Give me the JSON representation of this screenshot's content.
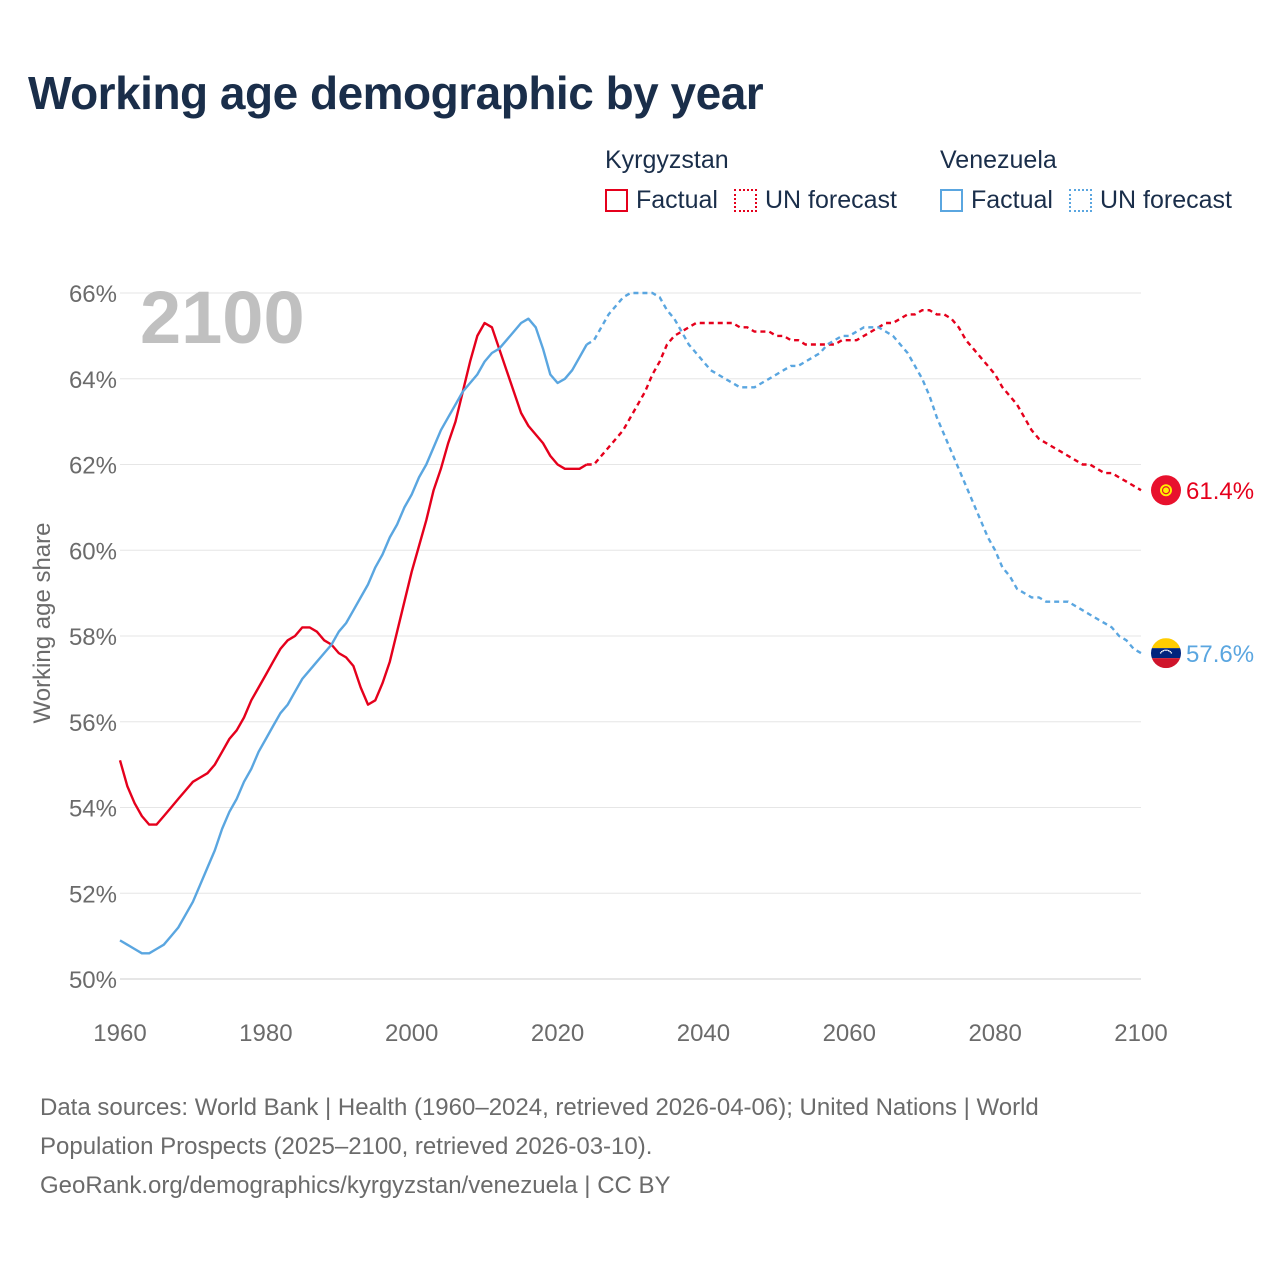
{
  "title": "Working age demographic by year",
  "legend": {
    "groups": [
      {
        "name": "Kyrgyzstan",
        "color": "#e5001c",
        "factual_label": "Factual",
        "forecast_label": "UN forecast"
      },
      {
        "name": "Venezuela",
        "color": "#5aa6e0",
        "factual_label": "Factual",
        "forecast_label": "UN forecast"
      }
    ]
  },
  "year_label": "2100",
  "chart_data": {
    "type": "line",
    "xlabel": "",
    "ylabel": "Working age share",
    "xlim": [
      1960,
      2100
    ],
    "ylim": [
      50,
      66
    ],
    "xticks": [
      1960,
      1980,
      2000,
      2020,
      2040,
      2060,
      2080,
      2100
    ],
    "yticks": [
      50,
      52,
      54,
      56,
      58,
      60,
      62,
      64,
      66
    ],
    "ytick_suffix": "%",
    "factual_end_year": 2024,
    "series": [
      {
        "name": "Kyrgyzstan",
        "color": "#e5001c",
        "end_label": "61.4%",
        "flag_icon": "kyrgyzstan-flag-icon",
        "points": [
          [
            1960,
            55.1
          ],
          [
            1961,
            54.5
          ],
          [
            1962,
            54.1
          ],
          [
            1963,
            53.8
          ],
          [
            1964,
            53.6
          ],
          [
            1965,
            53.6
          ],
          [
            1966,
            53.8
          ],
          [
            1967,
            54.0
          ],
          [
            1968,
            54.2
          ],
          [
            1969,
            54.4
          ],
          [
            1970,
            54.6
          ],
          [
            1971,
            54.7
          ],
          [
            1972,
            54.8
          ],
          [
            1973,
            55.0
          ],
          [
            1974,
            55.3
          ],
          [
            1975,
            55.6
          ],
          [
            1976,
            55.8
          ],
          [
            1977,
            56.1
          ],
          [
            1978,
            56.5
          ],
          [
            1979,
            56.8
          ],
          [
            1980,
            57.1
          ],
          [
            1981,
            57.4
          ],
          [
            1982,
            57.7
          ],
          [
            1983,
            57.9
          ],
          [
            1984,
            58.0
          ],
          [
            1985,
            58.2
          ],
          [
            1986,
            58.2
          ],
          [
            1987,
            58.1
          ],
          [
            1988,
            57.9
          ],
          [
            1989,
            57.8
          ],
          [
            1990,
            57.6
          ],
          [
            1991,
            57.5
          ],
          [
            1992,
            57.3
          ],
          [
            1993,
            56.8
          ],
          [
            1994,
            56.4
          ],
          [
            1995,
            56.5
          ],
          [
            1996,
            56.9
          ],
          [
            1997,
            57.4
          ],
          [
            1998,
            58.1
          ],
          [
            1999,
            58.8
          ],
          [
            2000,
            59.5
          ],
          [
            2001,
            60.1
          ],
          [
            2002,
            60.7
          ],
          [
            2003,
            61.4
          ],
          [
            2004,
            61.9
          ],
          [
            2005,
            62.5
          ],
          [
            2006,
            63.0
          ],
          [
            2007,
            63.7
          ],
          [
            2008,
            64.4
          ],
          [
            2009,
            65.0
          ],
          [
            2010,
            65.3
          ],
          [
            2011,
            65.2
          ],
          [
            2012,
            64.7
          ],
          [
            2013,
            64.2
          ],
          [
            2014,
            63.7
          ],
          [
            2015,
            63.2
          ],
          [
            2016,
            62.9
          ],
          [
            2017,
            62.7
          ],
          [
            2018,
            62.5
          ],
          [
            2019,
            62.2
          ],
          [
            2020,
            62.0
          ],
          [
            2021,
            61.9
          ],
          [
            2022,
            61.9
          ],
          [
            2023,
            61.9
          ],
          [
            2024,
            62.0
          ],
          [
            2025,
            62.0
          ],
          [
            2026,
            62.2
          ],
          [
            2027,
            62.4
          ],
          [
            2028,
            62.6
          ],
          [
            2029,
            62.8
          ],
          [
            2030,
            63.1
          ],
          [
            2031,
            63.4
          ],
          [
            2032,
            63.7
          ],
          [
            2033,
            64.1
          ],
          [
            2034,
            64.4
          ],
          [
            2035,
            64.8
          ],
          [
            2036,
            65.0
          ],
          [
            2037,
            65.1
          ],
          [
            2038,
            65.2
          ],
          [
            2039,
            65.3
          ],
          [
            2040,
            65.3
          ],
          [
            2041,
            65.3
          ],
          [
            2042,
            65.3
          ],
          [
            2043,
            65.3
          ],
          [
            2044,
            65.3
          ],
          [
            2045,
            65.2
          ],
          [
            2046,
            65.2
          ],
          [
            2047,
            65.1
          ],
          [
            2048,
            65.1
          ],
          [
            2049,
            65.1
          ],
          [
            2050,
            65.0
          ],
          [
            2051,
            65.0
          ],
          [
            2052,
            64.9
          ],
          [
            2053,
            64.9
          ],
          [
            2054,
            64.8
          ],
          [
            2055,
            64.8
          ],
          [
            2056,
            64.8
          ],
          [
            2057,
            64.8
          ],
          [
            2058,
            64.8
          ],
          [
            2059,
            64.9
          ],
          [
            2060,
            64.9
          ],
          [
            2061,
            64.9
          ],
          [
            2062,
            65.0
          ],
          [
            2063,
            65.1
          ],
          [
            2064,
            65.2
          ],
          [
            2065,
            65.3
          ],
          [
            2066,
            65.3
          ],
          [
            2067,
            65.4
          ],
          [
            2068,
            65.5
          ],
          [
            2069,
            65.5
          ],
          [
            2070,
            65.6
          ],
          [
            2071,
            65.6
          ],
          [
            2072,
            65.5
          ],
          [
            2073,
            65.5
          ],
          [
            2074,
            65.4
          ],
          [
            2075,
            65.2
          ],
          [
            2076,
            64.9
          ],
          [
            2077,
            64.7
          ],
          [
            2078,
            64.5
          ],
          [
            2079,
            64.3
          ],
          [
            2080,
            64.1
          ],
          [
            2081,
            63.8
          ],
          [
            2082,
            63.6
          ],
          [
            2083,
            63.4
          ],
          [
            2084,
            63.1
          ],
          [
            2085,
            62.8
          ],
          [
            2086,
            62.6
          ],
          [
            2087,
            62.5
          ],
          [
            2088,
            62.4
          ],
          [
            2089,
            62.3
          ],
          [
            2090,
            62.2
          ],
          [
            2091,
            62.1
          ],
          [
            2092,
            62.0
          ],
          [
            2093,
            62.0
          ],
          [
            2094,
            61.9
          ],
          [
            2095,
            61.8
          ],
          [
            2096,
            61.8
          ],
          [
            2097,
            61.7
          ],
          [
            2098,
            61.6
          ],
          [
            2099,
            61.5
          ],
          [
            2100,
            61.4
          ]
        ]
      },
      {
        "name": "Venezuela",
        "color": "#5aa6e0",
        "end_label": "57.6%",
        "flag_icon": "venezuela-flag-icon",
        "points": [
          [
            1960,
            50.9
          ],
          [
            1961,
            50.8
          ],
          [
            1962,
            50.7
          ],
          [
            1963,
            50.6
          ],
          [
            1964,
            50.6
          ],
          [
            1965,
            50.7
          ],
          [
            1966,
            50.8
          ],
          [
            1967,
            51.0
          ],
          [
            1968,
            51.2
          ],
          [
            1969,
            51.5
          ],
          [
            1970,
            51.8
          ],
          [
            1971,
            52.2
          ],
          [
            1972,
            52.6
          ],
          [
            1973,
            53.0
          ],
          [
            1974,
            53.5
          ],
          [
            1975,
            53.9
          ],
          [
            1976,
            54.2
          ],
          [
            1977,
            54.6
          ],
          [
            1978,
            54.9
          ],
          [
            1979,
            55.3
          ],
          [
            1980,
            55.6
          ],
          [
            1981,
            55.9
          ],
          [
            1982,
            56.2
          ],
          [
            1983,
            56.4
          ],
          [
            1984,
            56.7
          ],
          [
            1985,
            57.0
          ],
          [
            1986,
            57.2
          ],
          [
            1987,
            57.4
          ],
          [
            1988,
            57.6
          ],
          [
            1989,
            57.8
          ],
          [
            1990,
            58.1
          ],
          [
            1991,
            58.3
          ],
          [
            1992,
            58.6
          ],
          [
            1993,
            58.9
          ],
          [
            1994,
            59.2
          ],
          [
            1995,
            59.6
          ],
          [
            1996,
            59.9
          ],
          [
            1997,
            60.3
          ],
          [
            1998,
            60.6
          ],
          [
            1999,
            61.0
          ],
          [
            2000,
            61.3
          ],
          [
            2001,
            61.7
          ],
          [
            2002,
            62.0
          ],
          [
            2003,
            62.4
          ],
          [
            2004,
            62.8
          ],
          [
            2005,
            63.1
          ],
          [
            2006,
            63.4
          ],
          [
            2007,
            63.7
          ],
          [
            2008,
            63.9
          ],
          [
            2009,
            64.1
          ],
          [
            2010,
            64.4
          ],
          [
            2011,
            64.6
          ],
          [
            2012,
            64.7
          ],
          [
            2013,
            64.9
          ],
          [
            2014,
            65.1
          ],
          [
            2015,
            65.3
          ],
          [
            2016,
            65.4
          ],
          [
            2017,
            65.2
          ],
          [
            2018,
            64.7
          ],
          [
            2019,
            64.1
          ],
          [
            2020,
            63.9
          ],
          [
            2021,
            64.0
          ],
          [
            2022,
            64.2
          ],
          [
            2023,
            64.5
          ],
          [
            2024,
            64.8
          ],
          [
            2025,
            64.9
          ],
          [
            2026,
            65.2
          ],
          [
            2027,
            65.5
          ],
          [
            2028,
            65.7
          ],
          [
            2029,
            65.9
          ],
          [
            2030,
            66.0
          ],
          [
            2031,
            66.0
          ],
          [
            2032,
            66.0
          ],
          [
            2033,
            66.0
          ],
          [
            2034,
            65.9
          ],
          [
            2035,
            65.6
          ],
          [
            2036,
            65.4
          ],
          [
            2037,
            65.1
          ],
          [
            2038,
            64.8
          ],
          [
            2039,
            64.6
          ],
          [
            2040,
            64.4
          ],
          [
            2041,
            64.2
          ],
          [
            2042,
            64.1
          ],
          [
            2043,
            64.0
          ],
          [
            2044,
            63.9
          ],
          [
            2045,
            63.8
          ],
          [
            2046,
            63.8
          ],
          [
            2047,
            63.8
          ],
          [
            2048,
            63.9
          ],
          [
            2049,
            64.0
          ],
          [
            2050,
            64.1
          ],
          [
            2051,
            64.2
          ],
          [
            2052,
            64.3
          ],
          [
            2053,
            64.3
          ],
          [
            2054,
            64.4
          ],
          [
            2055,
            64.5
          ],
          [
            2056,
            64.6
          ],
          [
            2057,
            64.8
          ],
          [
            2058,
            64.9
          ],
          [
            2059,
            65.0
          ],
          [
            2060,
            65.0
          ],
          [
            2061,
            65.1
          ],
          [
            2062,
            65.2
          ],
          [
            2063,
            65.2
          ],
          [
            2064,
            65.2
          ],
          [
            2065,
            65.1
          ],
          [
            2066,
            65.0
          ],
          [
            2067,
            64.8
          ],
          [
            2068,
            64.6
          ],
          [
            2069,
            64.3
          ],
          [
            2070,
            64.0
          ],
          [
            2071,
            63.6
          ],
          [
            2072,
            63.1
          ],
          [
            2073,
            62.7
          ],
          [
            2074,
            62.3
          ],
          [
            2075,
            61.9
          ],
          [
            2076,
            61.5
          ],
          [
            2077,
            61.1
          ],
          [
            2078,
            60.7
          ],
          [
            2079,
            60.3
          ],
          [
            2080,
            60.0
          ],
          [
            2081,
            59.6
          ],
          [
            2082,
            59.4
          ],
          [
            2083,
            59.1
          ],
          [
            2084,
            59.0
          ],
          [
            2085,
            58.9
          ],
          [
            2086,
            58.9
          ],
          [
            2087,
            58.8
          ],
          [
            2088,
            58.8
          ],
          [
            2089,
            58.8
          ],
          [
            2090,
            58.8
          ],
          [
            2091,
            58.7
          ],
          [
            2092,
            58.6
          ],
          [
            2093,
            58.5
          ],
          [
            2094,
            58.4
          ],
          [
            2095,
            58.3
          ],
          [
            2096,
            58.2
          ],
          [
            2097,
            58.0
          ],
          [
            2098,
            57.9
          ],
          [
            2099,
            57.7
          ],
          [
            2100,
            57.6
          ]
        ]
      }
    ]
  },
  "footer": {
    "line1": "Data sources: World Bank | Health (1960–2024, retrieved 2026-04-06); United Nations | World",
    "line2": "Population Prospects (2025–2100, retrieved 2026-03-10).",
    "line3": "GeoRank.org/demographics/kyrgyzstan/venezuela | CC BY"
  }
}
